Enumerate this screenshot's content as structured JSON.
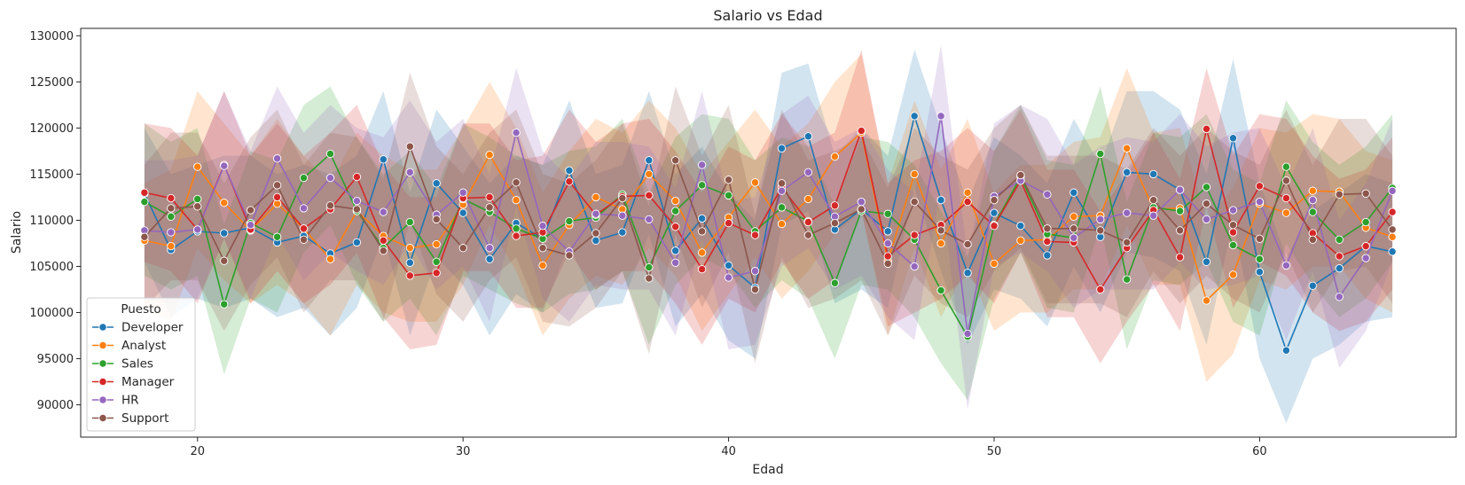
{
  "chart_data": {
    "type": "line",
    "title": "Salario vs Edad",
    "xlabel": "Edad",
    "ylabel": "Salario",
    "xlim": [
      15.6,
      67.4
    ],
    "ylim": [
      86500,
      130800
    ],
    "xticks": [
      20,
      30,
      40,
      50,
      60
    ],
    "yticks": [
      90000,
      95000,
      100000,
      105000,
      110000,
      115000,
      120000,
      125000,
      130000
    ],
    "grid": false,
    "legend": {
      "title": "Puesto",
      "placement": "lower-left"
    },
    "x": [
      18,
      19,
      20,
      21,
      22,
      23,
      24,
      25,
      26,
      27,
      28,
      29,
      30,
      31,
      32,
      33,
      34,
      35,
      36,
      37,
      38,
      39,
      40,
      41,
      42,
      43,
      44,
      45,
      46,
      47,
      48,
      49,
      50,
      51,
      52,
      53,
      54,
      55,
      56,
      57,
      58,
      59,
      60,
      61,
      62,
      63,
      64,
      65
    ],
    "series": [
      {
        "name": "Developer",
        "color": "#1f77b4",
        "values": [
          112900,
          106800,
          108800,
          108600,
          109200,
          107600,
          108300,
          106400,
          107600,
          116600,
          105400,
          114000,
          110800,
          105800,
          109700,
          108000,
          115400,
          107800,
          108700,
          116500,
          106700,
          110200,
          105100,
          102700,
          117800,
          119100,
          109000,
          111200,
          108800,
          121300,
          112200,
          104300,
          110800,
          109400,
          106200,
          113000,
          108200,
          115200,
          115000,
          113300,
          105500,
          118900,
          104400,
          95900,
          102900,
          104800,
          107200,
          106600
        ],
        "upper": [
          120000,
          115000,
          116000,
          117000,
          117000,
          115000,
          116000,
          115000,
          117000,
          124000,
          113000,
          122000,
          118000,
          114000,
          117000,
          116000,
          123000,
          115000,
          116000,
          124000,
          115000,
          118000,
          113000,
          110000,
          126000,
          127000,
          117000,
          120000,
          117000,
          128500,
          120000,
          112000,
          119000,
          117000,
          114000,
          121000,
          116000,
          124000,
          124000,
          122000,
          115000,
          127500,
          114000,
          106000,
          111000,
          113000,
          115000,
          114000
        ],
        "lower": [
          105500,
          99500,
          101500,
          100500,
          101500,
          99500,
          100500,
          97500,
          100500,
          108500,
          97500,
          106000,
          103000,
          97500,
          102000,
          100000,
          107500,
          100500,
          101000,
          108500,
          98500,
          102000,
          97000,
          95000,
          109500,
          111000,
          101000,
          102500,
          100500,
          113500,
          104500,
          96500,
          102500,
          101500,
          98500,
          105000,
          100000,
          106500,
          106000,
          104500,
          96500,
          110000,
          95000,
          88000,
          95000,
          96500,
          99000,
          99500
        ]
      },
      {
        "name": "Analyst",
        "color": "#ff7f0e",
        "values": [
          107800,
          107200,
          115800,
          111900,
          108900,
          111800,
          109100,
          105800,
          111000,
          108300,
          107000,
          107400,
          111700,
          117100,
          112200,
          105100,
          109500,
          112500,
          111200,
          115000,
          112100,
          106500,
          110300,
          114100,
          109600,
          112300,
          116900,
          119500,
          105600,
          115000,
          107500,
          113000,
          105300,
          107800,
          107900,
          110400,
          110500,
          117800,
          111200,
          111300,
          101300,
          104100,
          111800,
          110800,
          113200,
          113100,
          109200,
          108200
        ],
        "upper": [
          114000,
          115500,
          124000,
          120500,
          117000,
          121000,
          117000,
          114000,
          119500,
          117000,
          115500,
          115500,
          120000,
          125000,
          120000,
          113000,
          117500,
          121000,
          119500,
          123000,
          120000,
          115000,
          118500,
          122000,
          118000,
          120500,
          125000,
          128000,
          114000,
          123000,
          115500,
          121000,
          113000,
          116000,
          116000,
          118500,
          119000,
          126500,
          119500,
          120000,
          110000,
          113500,
          120000,
          119500,
          121500,
          121000,
          117500,
          116500
        ],
        "lower": [
          100500,
          99000,
          107000,
          103500,
          101000,
          103000,
          101000,
          97500,
          103000,
          100000,
          99000,
          99000,
          103000,
          109500,
          104500,
          97500,
          101500,
          104000,
          103000,
          107000,
          104000,
          98000,
          102000,
          106000,
          101500,
          104500,
          108500,
          111000,
          97500,
          107000,
          99500,
          105000,
          98000,
          100000,
          100000,
          102500,
          102500,
          109500,
          103000,
          103000,
          92500,
          95500,
          103500,
          102500,
          105000,
          105000,
          101500,
          100000
        ]
      },
      {
        "name": "Sales",
        "color": "#2ca02c",
        "values": [
          112000,
          110400,
          112300,
          100900,
          109700,
          108200,
          114600,
          117200,
          111000,
          107000,
          109800,
          105500,
          112300,
          110900,
          109100,
          108000,
          109900,
          110300,
          112800,
          104900,
          111000,
          113800,
          112700,
          108800,
          111400,
          109900,
          103200,
          111000,
          110700,
          107900,
          102400,
          97400,
          109500,
          114700,
          108500,
          108100,
          117200,
          103600,
          111400,
          111000,
          113600,
          107300,
          105800,
          115800,
          110900,
          107900,
          109800,
          113500
        ],
        "upper": [
          120500,
          118500,
          120000,
          109500,
          117500,
          116500,
          122500,
          124500,
          119000,
          115000,
          117500,
          113500,
          120500,
          119000,
          117000,
          116000,
          117500,
          118000,
          121000,
          113000,
          119000,
          121500,
          121000,
          116500,
          119000,
          118000,
          111500,
          119000,
          118500,
          116000,
          111000,
          106000,
          117500,
          122500,
          116500,
          116000,
          124500,
          112000,
          119500,
          119000,
          121500,
          115500,
          114000,
          123000,
          118500,
          116000,
          118000,
          121500
        ],
        "lower": [
          104000,
          102500,
          104000,
          93300,
          101500,
          100000,
          106500,
          109500,
          103000,
          99000,
          101500,
          97500,
          104000,
          102500,
          101000,
          100000,
          102000,
          102500,
          104500,
          96500,
          103000,
          106000,
          104500,
          100500,
          103500,
          101500,
          95000,
          103000,
          102500,
          99500,
          94500,
          90500,
          101500,
          106500,
          100500,
          100000,
          109500,
          96000,
          103500,
          103000,
          105500,
          99000,
          97500,
          107500,
          103000,
          99500,
          101500,
          105500
        ]
      },
      {
        "name": "Manager",
        "color": "#d62728",
        "values": [
          113000,
          112400,
          109000,
          116000,
          109000,
          112500,
          109100,
          111200,
          114700,
          107800,
          104000,
          104300,
          112400,
          112500,
          108300,
          108700,
          114200,
          110600,
          112600,
          112700,
          109300,
          104700,
          109700,
          108400,
          113600,
          109800,
          111600,
          119700,
          106100,
          108400,
          109500,
          112000,
          109400,
          114300,
          107700,
          107600,
          102500,
          107000,
          111100,
          106000,
          119900,
          108700,
          113700,
          112400,
          108600,
          106100,
          107200,
          110900
        ],
        "upper": [
          120500,
          120000,
          117000,
          124000,
          117000,
          120500,
          117000,
          119500,
          122500,
          116000,
          112500,
          112500,
          120500,
          120500,
          116500,
          117000,
          122000,
          118500,
          120500,
          121000,
          117500,
          113000,
          118000,
          116500,
          121500,
          118000,
          119500,
          128500,
          114000,
          116500,
          117500,
          120000,
          117500,
          122000,
          115500,
          115500,
          111000,
          115000,
          119500,
          114500,
          126500,
          117000,
          121500,
          121000,
          117000,
          114500,
          115500,
          119000
        ],
        "lower": [
          105500,
          104500,
          101000,
          108000,
          101000,
          104500,
          101000,
          103000,
          106500,
          99500,
          96000,
          96500,
          104500,
          104500,
          100500,
          100500,
          106500,
          102500,
          104500,
          104500,
          101000,
          96500,
          101500,
          100000,
          105500,
          101500,
          103500,
          111000,
          98500,
          100000,
          101500,
          104000,
          101000,
          106500,
          99500,
          99500,
          94500,
          99000,
          103000,
          98000,
          111500,
          100500,
          105500,
          104000,
          100000,
          98000,
          99000,
          102500
        ]
      },
      {
        "name": "HR",
        "color": "#9467bd",
        "values": [
          108900,
          108700,
          109000,
          115900,
          109500,
          116700,
          111300,
          114600,
          112100,
          110900,
          115200,
          110600,
          113000,
          107000,
          119500,
          109400,
          106600,
          110700,
          110500,
          110100,
          105400,
          116000,
          103800,
          104500,
          113200,
          115200,
          110400,
          112000,
          107500,
          105000,
          121300,
          97700,
          112600,
          114300,
          112800,
          108100,
          110100,
          110800,
          110500,
          113300,
          110100,
          111100,
          112000,
          105100,
          112200,
          101700,
          105900,
          113200
        ],
        "upper": [
          116500,
          116500,
          117000,
          124000,
          117500,
          124500,
          119500,
          122500,
          120000,
          119000,
          123000,
          118500,
          121000,
          115000,
          126500,
          117500,
          114500,
          118500,
          118500,
          118000,
          113500,
          124000,
          112000,
          112500,
          121500,
          123500,
          118500,
          120000,
          115500,
          113000,
          129000,
          106000,
          120500,
          122500,
          121000,
          116000,
          118000,
          119000,
          118500,
          121500,
          118000,
          119500,
          120000,
          113500,
          120000,
          110000,
          114000,
          121000
        ],
        "lower": [
          101500,
          101000,
          101500,
          108000,
          101500,
          108500,
          103500,
          106500,
          104500,
          103000,
          107500,
          102500,
          105000,
          99000,
          111500,
          101500,
          99000,
          103000,
          102500,
          102500,
          97500,
          108000,
          96000,
          96500,
          105000,
          107000,
          102500,
          104000,
          99500,
          97000,
          113500,
          89500,
          105000,
          106500,
          104500,
          100500,
          102500,
          102500,
          102500,
          105500,
          102500,
          103000,
          104000,
          97000,
          104500,
          94000,
          98000,
          105500
        ]
      },
      {
        "name": "Support",
        "color": "#8c564b",
        "values": [
          108200,
          111300,
          111500,
          105600,
          111100,
          113800,
          107900,
          111600,
          111200,
          106700,
          118000,
          110100,
          107000,
          111400,
          114100,
          107000,
          106200,
          108600,
          112400,
          103700,
          116500,
          108800,
          114400,
          102500,
          114000,
          108400,
          109700,
          111200,
          105300,
          112000,
          108900,
          107400,
          112200,
          114900,
          109100,
          109100,
          108900,
          107600,
          112200,
          108900,
          111800,
          109500,
          108000,
          114300,
          107900,
          112800,
          112900,
          109000
        ],
        "upper": [
          116000,
          119500,
          119500,
          114000,
          119000,
          122000,
          116000,
          119500,
          119000,
          114500,
          126000,
          118000,
          115000,
          119500,
          122000,
          115000,
          114000,
          116500,
          120500,
          111500,
          124500,
          117000,
          122500,
          110500,
          122000,
          116500,
          117500,
          119000,
          113500,
          120000,
          117000,
          115500,
          120000,
          122500,
          117000,
          117000,
          117000,
          115500,
          120000,
          117000,
          120000,
          117500,
          116000,
          122000,
          116000,
          121000,
          121000,
          117000
        ],
        "lower": [
          100500,
          103500,
          103500,
          98000,
          103000,
          106000,
          100000,
          103500,
          103500,
          99000,
          110000,
          102000,
          99000,
          103500,
          106000,
          99000,
          98500,
          100500,
          104500,
          95500,
          108500,
          100500,
          106500,
          94500,
          106000,
          100500,
          101500,
          103500,
          97500,
          104000,
          101000,
          99500,
          104500,
          107000,
          101000,
          101000,
          101000,
          99500,
          104500,
          101000,
          104000,
          101500,
          100000,
          106500,
          100000,
          104500,
          105000,
          101000
        ]
      }
    ]
  }
}
